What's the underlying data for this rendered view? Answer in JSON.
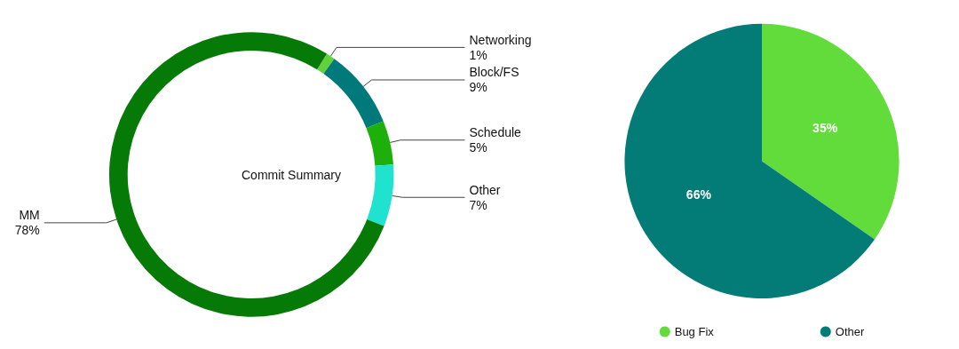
{
  "chart_data": [
    {
      "type": "donut",
      "title": "Commit Summary",
      "categories": [
        "Networking",
        "Block/FS",
        "Schedule",
        "Other",
        "MM"
      ],
      "values": [
        1,
        9,
        5,
        7,
        78
      ],
      "colors": [
        "#5fd23c",
        "#00797a",
        "#1daf0a",
        "#1fe2cf",
        "#067a06"
      ],
      "value_labels": [
        "1%",
        "9%",
        "5%",
        "7%",
        "78%"
      ],
      "legend": false
    },
    {
      "type": "pie",
      "categories": [
        "Bug Fix",
        "Other"
      ],
      "values": [
        35,
        66
      ],
      "colors": [
        "#62dc3a",
        "#037b77"
      ],
      "value_labels": [
        "35%",
        "66%"
      ],
      "legend": "bottom"
    }
  ]
}
